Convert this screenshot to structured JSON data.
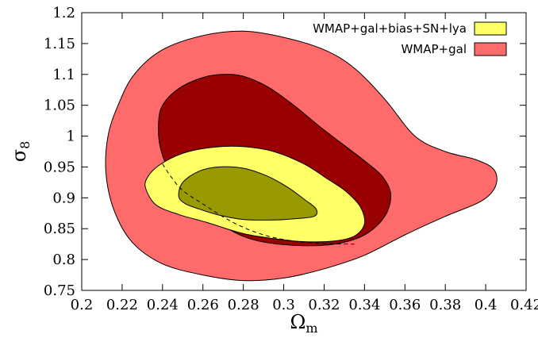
{
  "chart_data": {
    "type": "contour",
    "xlabel_symbol": "Ω",
    "xlabel_sub": "m",
    "ylabel_symbol": "σ",
    "ylabel_sub": "8",
    "xlim": [
      0.2,
      0.42
    ],
    "ylim": [
      0.75,
      1.2
    ],
    "xticks": [
      "0.2",
      "0.22",
      "0.24",
      "0.26",
      "0.28",
      "0.3",
      "0.32",
      "0.34",
      "0.36",
      "0.38",
      "0.4",
      "0.42"
    ],
    "yticks": [
      "0.75",
      "0.8",
      "0.85",
      "0.9",
      "0.95",
      "1",
      "1.05",
      "1.1",
      "1.15",
      "1.2"
    ],
    "legend_position": "top-right",
    "series": [
      {
        "name": "WMAP+gal",
        "color": "#ff6a6a",
        "contours": [
          {
            "level": "outer",
            "color": "#ff6a6a",
            "points": [
              [
                0.213,
                1.0
              ],
              [
                0.218,
                1.05
              ],
              [
                0.226,
                1.1
              ],
              [
                0.24,
                1.14
              ],
              [
                0.26,
                1.163
              ],
              [
                0.28,
                1.17
              ],
              [
                0.3,
                1.16
              ],
              [
                0.32,
                1.14
              ],
              [
                0.335,
                1.11
              ],
              [
                0.35,
                1.06
              ],
              [
                0.365,
                1.0
              ],
              [
                0.38,
                0.975
              ],
              [
                0.395,
                0.962
              ],
              [
                0.404,
                0.946
              ],
              [
                0.405,
                0.92
              ],
              [
                0.398,
                0.895
              ],
              [
                0.38,
                0.87
              ],
              [
                0.36,
                0.84
              ],
              [
                0.34,
                0.807
              ],
              [
                0.32,
                0.785
              ],
              [
                0.3,
                0.77
              ],
              [
                0.28,
                0.766
              ],
              [
                0.26,
                0.775
              ],
              [
                0.24,
                0.793
              ],
              [
                0.225,
                0.828
              ],
              [
                0.216,
                0.88
              ],
              [
                0.212,
                0.94
              ]
            ]
          },
          {
            "level": "inner",
            "color": "#990000",
            "points": [
              [
                0.238,
                1.02
              ],
              [
                0.24,
                1.05
              ],
              [
                0.248,
                1.077
              ],
              [
                0.26,
                1.095
              ],
              [
                0.27,
                1.1
              ],
              [
                0.28,
                1.097
              ],
              [
                0.292,
                1.08
              ],
              [
                0.305,
                1.05
              ],
              [
                0.318,
                1.015
              ],
              [
                0.33,
                0.985
              ],
              [
                0.34,
                0.96
              ],
              [
                0.349,
                0.934
              ],
              [
                0.353,
                0.905
              ],
              [
                0.35,
                0.87
              ],
              [
                0.34,
                0.84
              ],
              [
                0.325,
                0.825
              ],
              [
                0.305,
                0.823
              ],
              [
                0.285,
                0.832
              ],
              [
                0.27,
                0.855
              ],
              [
                0.255,
                0.895
              ],
              [
                0.244,
                0.94
              ],
              [
                0.239,
                0.98
              ]
            ]
          }
        ]
      },
      {
        "name": "WMAP+gal+bias+SN+lya",
        "color": "#ffff66",
        "contours": [
          {
            "level": "outer",
            "color": "#ffff66",
            "points": [
              [
                0.232,
                0.912
              ],
              [
                0.232,
                0.93
              ],
              [
                0.238,
                0.952
              ],
              [
                0.25,
                0.972
              ],
              [
                0.265,
                0.982
              ],
              [
                0.28,
                0.983
              ],
              [
                0.295,
                0.975
              ],
              [
                0.31,
                0.955
              ],
              [
                0.322,
                0.93
              ],
              [
                0.331,
                0.91
              ],
              [
                0.338,
                0.885
              ],
              [
                0.34,
                0.858
              ],
              [
                0.335,
                0.838
              ],
              [
                0.325,
                0.83
              ],
              [
                0.31,
                0.829
              ],
              [
                0.295,
                0.834
              ],
              [
                0.28,
                0.842
              ],
              [
                0.262,
                0.86
              ],
              [
                0.248,
                0.873
              ],
              [
                0.237,
                0.888
              ]
            ]
          },
          {
            "level": "inner",
            "color": "#999900",
            "points": [
              [
                0.248,
                0.903
              ],
              [
                0.25,
                0.925
              ],
              [
                0.258,
                0.943
              ],
              [
                0.268,
                0.95
              ],
              [
                0.28,
                0.948
              ],
              [
                0.292,
                0.935
              ],
              [
                0.302,
                0.917
              ],
              [
                0.31,
                0.898
              ],
              [
                0.316,
                0.882
              ],
              [
                0.315,
                0.87
              ],
              [
                0.305,
                0.866
              ],
              [
                0.295,
                0.864
              ],
              [
                0.28,
                0.865
              ],
              [
                0.268,
                0.872
              ],
              [
                0.258,
                0.882
              ],
              [
                0.251,
                0.891
              ]
            ]
          }
        ]
      }
    ],
    "dashed_line": [
      [
        0.24,
        0.955
      ],
      [
        0.244,
        0.935
      ],
      [
        0.25,
        0.912
      ],
      [
        0.26,
        0.89
      ],
      [
        0.275,
        0.86
      ],
      [
        0.29,
        0.84
      ],
      [
        0.305,
        0.83
      ],
      [
        0.32,
        0.826
      ],
      [
        0.335,
        0.825
      ]
    ]
  }
}
